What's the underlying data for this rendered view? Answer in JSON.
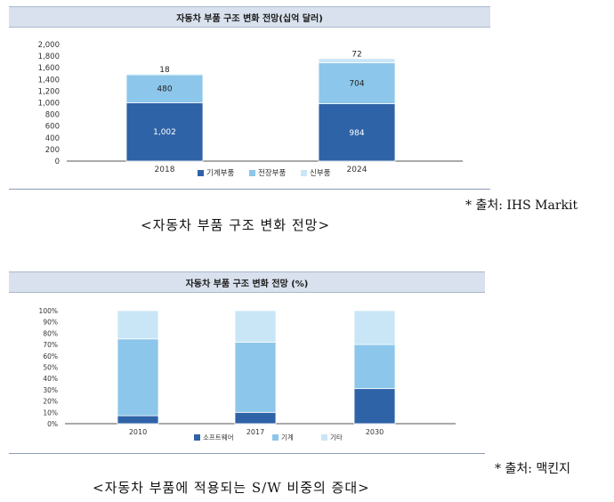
{
  "charts_meta": {
    "colors": {
      "series1": "#2f63a8",
      "series2": "#8cc6ea",
      "series3": "#c9e6f6",
      "axis": "#555555"
    }
  },
  "chart1_block": {
    "title": "자동차 부품 구조 변화 전망(십억 달러)",
    "source": "* 출처: IHS Markit",
    "caption": "<자동차 부품 구조 변화 전망>"
  },
  "chart2_block": {
    "title": "자동차 부품 구조 변화 전망 (%)",
    "source": "* 출처: 맥킨지",
    "caption": "<자동차 부품에 적용되는 S/W 비중의 증대>"
  },
  "chart_data": [
    {
      "type": "bar",
      "stacked": true,
      "title": "자동차 부품 구조 변화 전망(십억 달러)",
      "categories": [
        "2018",
        "2024"
      ],
      "series": [
        {
          "name": "기계부품",
          "values": [
            1002,
            984
          ]
        },
        {
          "name": "전장부품",
          "values": [
            480,
            704
          ]
        },
        {
          "name": "신부품",
          "values": [
            18,
            72
          ]
        }
      ],
      "data_labels": [
        [
          "1,002",
          "480",
          "18"
        ],
        [
          "984",
          "704",
          "72"
        ]
      ],
      "ylim": [
        0,
        2000
      ],
      "yticks": [
        "0",
        "200",
        "400",
        "600",
        "800",
        "1,000",
        "1,200",
        "1,400",
        "1,600",
        "1,800",
        "2,000"
      ],
      "legend": "bottom"
    },
    {
      "type": "bar",
      "stacked": true,
      "title": "자동차 부품 구조 변화 전망 (%)",
      "categories": [
        "2010",
        "2017",
        "2030"
      ],
      "series": [
        {
          "name": "소프트웨어",
          "values": [
            7,
            10,
            31
          ]
        },
        {
          "name": "기계",
          "values": [
            68,
            62,
            39
          ]
        },
        {
          "name": "기타",
          "values": [
            25,
            28,
            30
          ]
        }
      ],
      "ylim": [
        0,
        100
      ],
      "yticks": [
        "0%",
        "10%",
        "20%",
        "30%",
        "40%",
        "50%",
        "60%",
        "70%",
        "80%",
        "90%",
        "100%"
      ],
      "legend": "bottom"
    }
  ]
}
